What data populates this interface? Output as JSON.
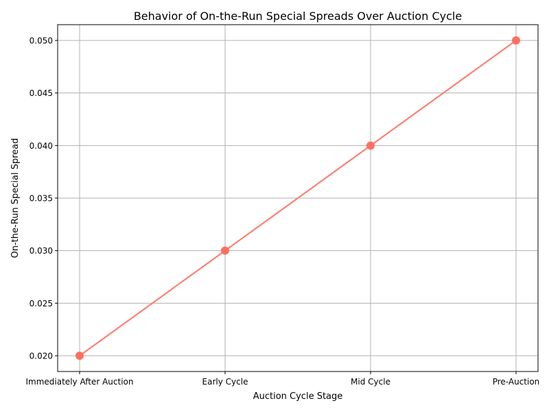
{
  "chart_data": {
    "type": "line",
    "title": "Behavior of On-the-Run Special Spreads Over Auction Cycle",
    "xlabel": "Auction Cycle Stage",
    "ylabel": "On-the-Run Special Spread",
    "categories": [
      "Immediately After Auction",
      "Early Cycle",
      "Mid Cycle",
      "Pre-Auction"
    ],
    "series": [
      {
        "values": [
          0.02,
          0.03,
          0.04,
          0.05
        ],
        "color": "#FA8072",
        "marker_color": "#FF6F61"
      }
    ],
    "ylim": [
      0.0185,
      0.0515
    ],
    "yticks": [
      0.02,
      0.025,
      0.03,
      0.035,
      0.04,
      0.045,
      0.05
    ],
    "ytick_labels": [
      "0.020",
      "0.025",
      "0.030",
      "0.035",
      "0.040",
      "0.045",
      "0.050"
    ],
    "grid": true,
    "legend": "none"
  }
}
